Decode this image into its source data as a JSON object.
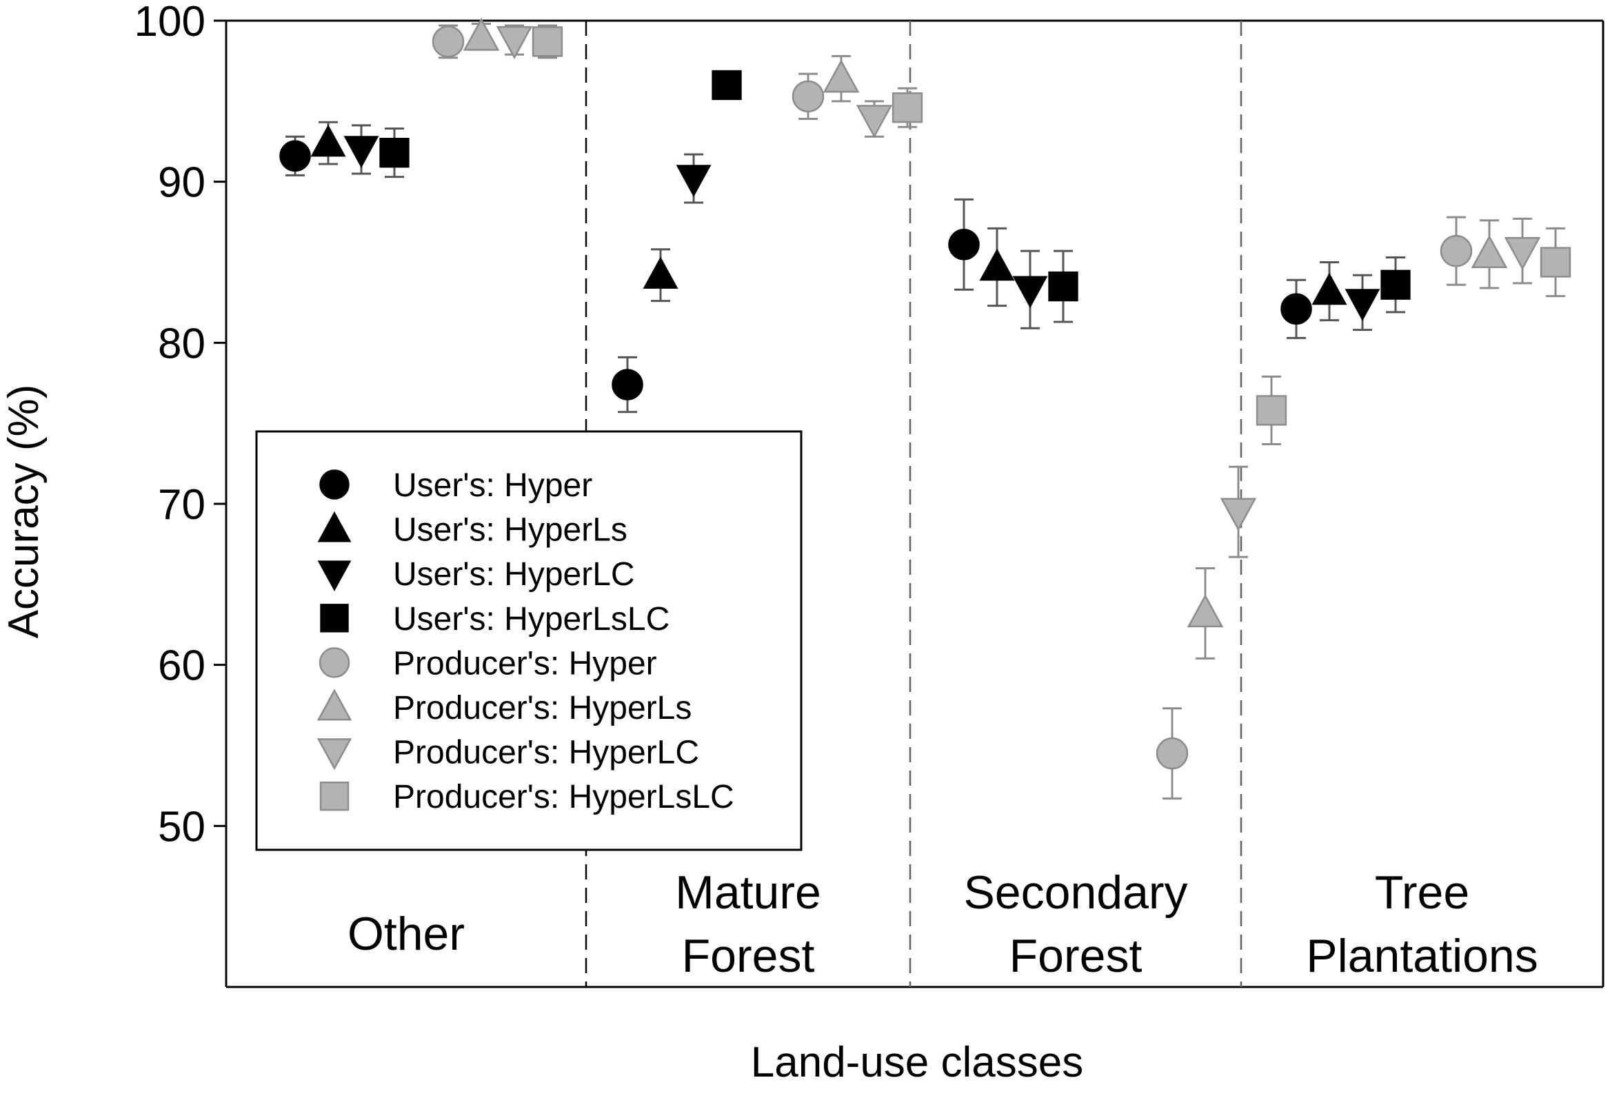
{
  "chart_data": {
    "type": "scatter",
    "xlabel": "Land-use classes",
    "ylabel": "Accuracy (%)",
    "ylim": [
      40,
      100
    ],
    "yticks": [
      50,
      60,
      70,
      80,
      90,
      100
    ],
    "grid": false,
    "legend_placement": "left, lower-middle",
    "categories": [
      {
        "lines": [
          "Other"
        ]
      },
      {
        "lines": [
          "Mature",
          "Forest"
        ]
      },
      {
        "lines": [
          "Secondary",
          "Forest"
        ]
      },
      {
        "lines": [
          "Tree",
          "Plantations"
        ]
      }
    ],
    "series": [
      {
        "name": "User's: Hyper",
        "marker": "circle",
        "color": "#000000",
        "values": [
          91.6,
          77.4,
          86.1,
          82.1
        ],
        "err": [
          1.2,
          1.7,
          2.8,
          1.8
        ]
      },
      {
        "name": "User's: HyperLs",
        "marker": "triangle-up",
        "color": "#000000",
        "values": [
          92.4,
          84.2,
          84.7,
          83.2
        ],
        "err": [
          1.3,
          1.6,
          2.4,
          1.8
        ]
      },
      {
        "name": "User's: HyperLC",
        "marker": "triangle-down",
        "color": "#000000",
        "values": [
          92.0,
          90.2,
          83.3,
          82.5
        ],
        "err": [
          1.5,
          1.5,
          2.4,
          1.7
        ]
      },
      {
        "name": "User's: HyperLsLC",
        "marker": "square",
        "color": "#000000",
        "values": [
          91.8,
          96.0,
          83.5,
          83.6
        ],
        "err": [
          1.5,
          0.8,
          2.2,
          1.7
        ]
      },
      {
        "name": "Producer's: Hyper",
        "marker": "circle",
        "color": "#b3b3b3",
        "values": [
          98.7,
          95.3,
          54.5,
          85.7
        ],
        "err": [
          1.0,
          1.4,
          2.8,
          2.1
        ]
      },
      {
        "name": "Producer's: HyperLs",
        "marker": "triangle-up",
        "color": "#b3b3b3",
        "values": [
          99.0,
          96.4,
          63.2,
          85.5
        ],
        "err": [
          0.8,
          1.4,
          2.8,
          2.1
        ]
      },
      {
        "name": "Producer's: HyperLC",
        "marker": "triangle-down",
        "color": "#b3b3b3",
        "values": [
          98.8,
          93.9,
          69.5,
          85.7
        ],
        "err": [
          0.9,
          1.1,
          2.8,
          2.0
        ]
      },
      {
        "name": "Producer's: HyperLsLC",
        "marker": "square",
        "color": "#b3b3b3",
        "values": [
          98.7,
          94.6,
          75.8,
          85.0
        ],
        "err": [
          1.0,
          1.2,
          2.1,
          2.1
        ]
      }
    ]
  }
}
